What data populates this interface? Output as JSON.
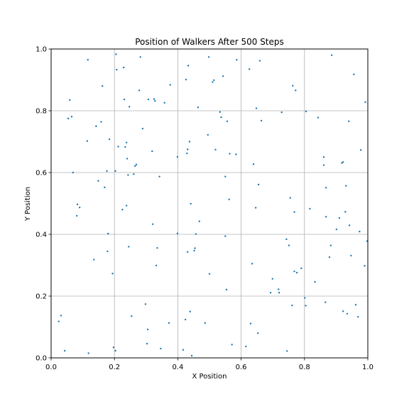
{
  "chart_data": {
    "type": "scatter",
    "title": "Position of Walkers After 500 Steps",
    "xlabel": "X Position",
    "ylabel": "Y Position",
    "xlim": [
      0.0,
      1.0
    ],
    "ylim": [
      0.0,
      1.0
    ],
    "xticks": [
      "0.0",
      "0.2",
      "0.4",
      "0.6",
      "0.8",
      "1.0"
    ],
    "yticks": [
      "0.0",
      "0.2",
      "0.4",
      "0.6",
      "0.8",
      "1.0"
    ],
    "grid": true,
    "marker_color": "#1f77b4",
    "series": [
      {
        "points": [
          [
            0.024,
            0.118
          ],
          [
            0.031,
            0.137
          ],
          [
            0.043,
            0.023
          ],
          [
            0.054,
            0.775
          ],
          [
            0.059,
            0.835
          ],
          [
            0.065,
            0.781
          ],
          [
            0.069,
            0.6
          ],
          [
            0.081,
            0.46
          ],
          [
            0.083,
            0.497
          ],
          [
            0.09,
            0.487
          ],
          [
            0.114,
            0.702
          ],
          [
            0.116,
            0.965
          ],
          [
            0.118,
            0.015
          ],
          [
            0.135,
            0.318
          ],
          [
            0.142,
            0.75
          ],
          [
            0.149,
            0.573
          ],
          [
            0.158,
            0.764
          ],
          [
            0.162,
            0.88
          ],
          [
            0.169,
            0.552
          ],
          [
            0.176,
            0.605
          ],
          [
            0.178,
            0.345
          ],
          [
            0.18,
            0.402
          ],
          [
            0.184,
            0.708
          ],
          [
            0.194,
            0.273
          ],
          [
            0.197,
            0.034
          ],
          [
            0.203,
            0.605
          ],
          [
            0.203,
            0.023
          ],
          [
            0.205,
            0.983
          ],
          [
            0.207,
            0.933
          ],
          [
            0.212,
            0.684
          ],
          [
            0.225,
            0.48
          ],
          [
            0.229,
            0.94
          ],
          [
            0.231,
            0.837
          ],
          [
            0.234,
            0.683
          ],
          [
            0.238,
            0.493
          ],
          [
            0.238,
            0.697
          ],
          [
            0.24,
            0.645
          ],
          [
            0.243,
            0.592
          ],
          [
            0.245,
            0.36
          ],
          [
            0.247,
            0.813
          ],
          [
            0.254,
            0.135
          ],
          [
            0.261,
            0.595
          ],
          [
            0.265,
            0.621
          ],
          [
            0.269,
            0.626
          ],
          [
            0.278,
            0.866
          ],
          [
            0.282,
            0.974
          ],
          [
            0.289,
            0.742
          ],
          [
            0.298,
            0.174
          ],
          [
            0.303,
            0.046
          ],
          [
            0.305,
            0.092
          ],
          [
            0.307,
            0.837
          ],
          [
            0.319,
            0.669
          ],
          [
            0.321,
            0.433
          ],
          [
            0.325,
            0.838
          ],
          [
            0.328,
            0.832
          ],
          [
            0.332,
            0.299
          ],
          [
            0.335,
            0.356
          ],
          [
            0.342,
            0.587
          ],
          [
            0.346,
            0.03
          ],
          [
            0.358,
            0.826
          ],
          [
            0.372,
            0.113
          ],
          [
            0.376,
            0.884
          ],
          [
            0.399,
            0.403
          ],
          [
            0.399,
            0.651
          ],
          [
            0.417,
            0.026
          ],
          [
            0.424,
            0.124
          ],
          [
            0.426,
            0.901
          ],
          [
            0.429,
            0.662
          ],
          [
            0.431,
            0.343
          ],
          [
            0.431,
            0.675
          ],
          [
            0.433,
            0.946
          ],
          [
            0.437,
            0.7
          ],
          [
            0.439,
            0.15
          ],
          [
            0.441,
            0.499
          ],
          [
            0.444,
            0.007
          ],
          [
            0.452,
            0.347
          ],
          [
            0.454,
            0.355
          ],
          [
            0.457,
            0.401
          ],
          [
            0.464,
            0.811
          ],
          [
            0.468,
            0.442
          ],
          [
            0.486,
            0.113
          ],
          [
            0.495,
            0.722
          ],
          [
            0.498,
            0.974
          ],
          [
            0.5,
            0.272
          ],
          [
            0.51,
            0.893
          ],
          [
            0.514,
            0.899
          ],
          [
            0.519,
            0.674
          ],
          [
            0.533,
            0.796
          ],
          [
            0.537,
            0.779
          ],
          [
            0.543,
            0.912
          ],
          [
            0.55,
            0.587
          ],
          [
            0.55,
            0.394
          ],
          [
            0.554,
            0.221
          ],
          [
            0.556,
            0.766
          ],
          [
            0.562,
            0.513
          ],
          [
            0.564,
            0.661
          ],
          [
            0.571,
            0.043
          ],
          [
            0.584,
            0.659
          ],
          [
            0.586,
            0.965
          ],
          [
            0.615,
            0.037
          ],
          [
            0.626,
            0.935
          ],
          [
            0.63,
            0.111
          ],
          [
            0.635,
            0.305
          ],
          [
            0.639,
            0.627
          ],
          [
            0.646,
            0.486
          ],
          [
            0.648,
            0.808
          ],
          [
            0.653,
            0.08
          ],
          [
            0.655,
            0.561
          ],
          [
            0.659,
            0.962
          ],
          [
            0.664,
            0.768
          ],
          [
            0.693,
            0.211
          ],
          [
            0.699,
            0.256
          ],
          [
            0.718,
            0.222
          ],
          [
            0.72,
            0.211
          ],
          [
            0.728,
            0.795
          ],
          [
            0.743,
            0.384
          ],
          [
            0.745,
            0.022
          ],
          [
            0.751,
            0.364
          ],
          [
            0.755,
            0.518
          ],
          [
            0.761,
            0.17
          ],
          [
            0.763,
            0.881
          ],
          [
            0.768,
            0.28
          ],
          [
            0.768,
            0.472
          ],
          [
            0.772,
            0.866
          ],
          [
            0.776,
            0.276
          ],
          [
            0.79,
            0.29
          ],
          [
            0.801,
            0.194
          ],
          [
            0.804,
            0.169
          ],
          [
            0.805,
            0.798
          ],
          [
            0.817,
            0.483
          ],
          [
            0.833,
            0.246
          ],
          [
            0.843,
            0.778
          ],
          [
            0.861,
            0.65
          ],
          [
            0.861,
            0.624
          ],
          [
            0.866,
            0.18
          ],
          [
            0.868,
            0.457
          ],
          [
            0.868,
            0.551
          ],
          [
            0.879,
            0.326
          ],
          [
            0.883,
            0.364
          ],
          [
            0.886,
            0.98
          ],
          [
            0.901,
            0.416
          ],
          [
            0.91,
            0.453
          ],
          [
            0.918,
            0.631
          ],
          [
            0.922,
            0.634
          ],
          [
            0.922,
            0.151
          ],
          [
            0.929,
            0.473
          ],
          [
            0.931,
            0.557
          ],
          [
            0.935,
            0.143
          ],
          [
            0.94,
            0.766
          ],
          [
            0.942,
            0.429
          ],
          [
            0.947,
            0.331
          ],
          [
            0.956,
            0.918
          ],
          [
            0.962,
            0.172
          ],
          [
            0.969,
            0.133
          ],
          [
            0.974,
            0.409
          ],
          [
            0.978,
            0.673
          ],
          [
            0.99,
            0.298
          ],
          [
            0.992,
            0.828
          ],
          [
            0.998,
            0.378
          ]
        ]
      }
    ]
  }
}
